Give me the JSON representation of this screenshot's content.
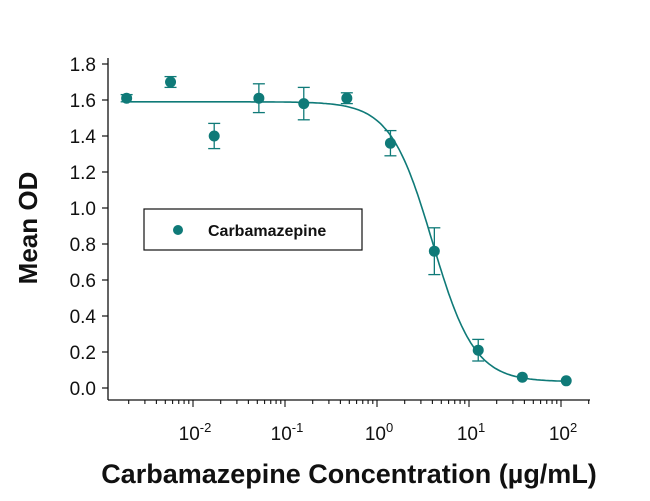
{
  "chart_data": {
    "type": "scatter",
    "title": "",
    "xlabel": "Carbamazepine Concentration (µg/mL)",
    "ylabel": "Mean OD",
    "xscale": "log",
    "xlim": [
      0.0013,
      250
    ],
    "ylim": [
      0,
      1.8
    ],
    "yticks": [
      "0.0",
      "0.2",
      "0.4",
      "0.6",
      "0.8",
      "1.0",
      "1.2",
      "1.4",
      "1.6",
      "1.8"
    ],
    "xticks": [
      {
        "base": "10",
        "exp": "-2",
        "value": 0.01
      },
      {
        "base": "10",
        "exp": "-1",
        "value": 0.1
      },
      {
        "base": "10",
        "exp": "0",
        "value": 1
      },
      {
        "base": "10",
        "exp": "1",
        "value": 10
      },
      {
        "base": "10",
        "exp": "2",
        "value": 100
      }
    ],
    "legend": {
      "position": "center-left",
      "entries": [
        "Carbamazepine"
      ]
    },
    "color": "#0f7a78",
    "series": [
      {
        "name": "Carbamazepine",
        "x": [
          0.0019,
          0.0057,
          0.017,
          0.052,
          0.16,
          0.47,
          1.4,
          4.2,
          12.6,
          38,
          114
        ],
        "y": [
          1.61,
          1.7,
          1.4,
          1.61,
          1.58,
          1.61,
          1.36,
          0.76,
          0.21,
          0.06,
          0.04
        ],
        "err": [
          0.02,
          0.03,
          0.07,
          0.08,
          0.09,
          0.03,
          0.07,
          0.13,
          0.06,
          0.01,
          0.01
        ]
      }
    ],
    "fit": {
      "type": "4PL",
      "top": 1.59,
      "bottom": 0.035,
      "ic50": 4.0,
      "hill": 1.9
    }
  }
}
